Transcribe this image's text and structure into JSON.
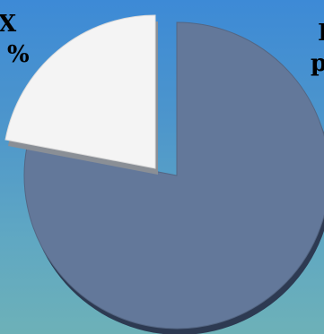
{
  "chart_data": {
    "type": "pie",
    "style": "3d-exploded",
    "slices": [
      {
        "label_fragment_line1": "X",
        "label_fragment_line2": "%",
        "value": 22,
        "color": "#f4f4f4",
        "exploded": true
      },
      {
        "label_fragment_line1": "I",
        "label_fragment_line2": "p",
        "value": 78,
        "color": "#63789a",
        "exploded": false
      }
    ],
    "title": "",
    "legend": "none",
    "grid": false
  }
}
